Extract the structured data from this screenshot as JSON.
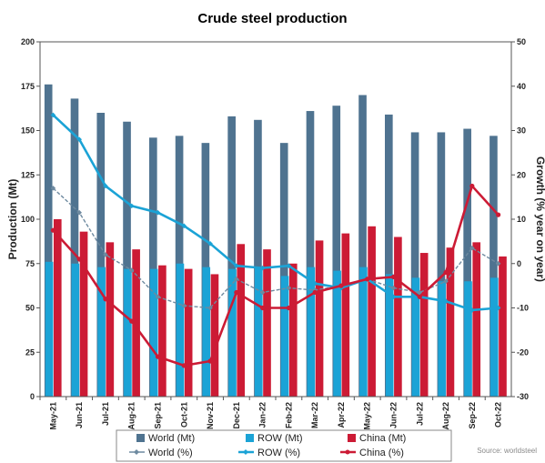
{
  "chart_data": {
    "type": "bar",
    "title": "Crude steel production",
    "categories": [
      "May-21",
      "Jun-21",
      "Jul-21",
      "Aug-21",
      "Sep-21",
      "Oct-21",
      "Nov-21",
      "Dec-21",
      "Jan-22",
      "Feb-22",
      "Mar-22",
      "Apr-22",
      "May-22",
      "Jun-22",
      "Jul-22",
      "Aug-22",
      "Sep-22",
      "Oct-22"
    ],
    "ylabel": "Production (Mt)",
    "ylim": [
      0,
      200
    ],
    "yticks": [
      "0",
      "25",
      "50",
      "75",
      "100",
      "125",
      "150",
      "175",
      "200"
    ],
    "y2label": "Growth (% year on year)",
    "y2lim": [
      -30,
      50
    ],
    "y2ticks": [
      "-30",
      "-20",
      "-10",
      "0",
      "10",
      "20",
      "30",
      "40",
      "50"
    ],
    "grid": false,
    "legend_position": "bottom",
    "source": "Source: worldsteel",
    "series": [
      {
        "name": "World (Mt)",
        "kind": "bar",
        "axis": "left",
        "color": "#4f7390",
        "values": [
          176,
          168,
          160,
          155,
          146,
          147,
          143,
          158,
          156,
          143,
          161,
          164,
          170,
          159,
          149,
          149,
          151,
          147
        ]
      },
      {
        "name": "ROW (Mt)",
        "kind": "bar",
        "axis": "left",
        "color": "#1ba3d6",
        "values": [
          76,
          75,
          73,
          72,
          72,
          75,
          73,
          72,
          73,
          68,
          73,
          71,
          73,
          69,
          67,
          65,
          65,
          67
        ]
      },
      {
        "name": "China (Mt)",
        "kind": "bar",
        "axis": "left",
        "color": "#cc1b35",
        "values": [
          100,
          93,
          87,
          83,
          74,
          72,
          69,
          86,
          83,
          75,
          88,
          92,
          96,
          90,
          81,
          84,
          87,
          79
        ]
      },
      {
        "name": "World (%)",
        "kind": "line",
        "axis": "right",
        "color": "#6e8aa0",
        "marker": "diamond",
        "values": [
          17,
          11.5,
          2,
          -1.5,
          -7.5,
          -9.5,
          -10,
          -3.5,
          -6.5,
          -5.5,
          -6,
          -5,
          -3.5,
          -5.5,
          -6.5,
          -4,
          3.5,
          0
        ]
      },
      {
        "name": "ROW (%)",
        "kind": "line",
        "axis": "right",
        "color": "#1ba3d6",
        "marker": "diamond",
        "values": [
          33.5,
          28,
          17.5,
          13,
          11.5,
          8.5,
          4.5,
          -0.5,
          -1,
          -0.5,
          -4.5,
          -5.5,
          -3.5,
          -7.5,
          -7.5,
          -8.5,
          -10.5,
          -10
        ]
      },
      {
        "name": "China (%)",
        "kind": "line",
        "axis": "right",
        "color": "#cc1b35",
        "marker": "circle",
        "values": [
          7.5,
          1,
          -8,
          -13,
          -21,
          -23,
          -22,
          -6.5,
          -10,
          -10,
          -6.5,
          -5,
          -3.5,
          -3,
          -7.5,
          -2,
          17.5,
          11
        ]
      }
    ]
  }
}
